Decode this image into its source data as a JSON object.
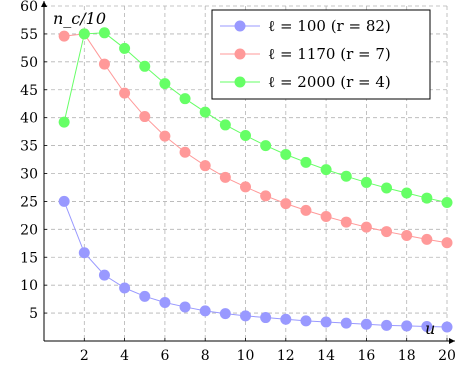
{
  "chart_data": {
    "type": "line",
    "title": "",
    "xlabel": "u",
    "ylabel": "n_c/10",
    "xlim": [
      0,
      20
    ],
    "ylim": [
      0,
      60
    ],
    "grid": true,
    "legend_position": "top-right",
    "x_ticks": [
      2,
      4,
      6,
      8,
      10,
      12,
      14,
      16,
      18,
      20
    ],
    "y_ticks": [
      5,
      10,
      15,
      20,
      25,
      30,
      35,
      40,
      45,
      50,
      55,
      60
    ],
    "x": [
      1,
      2,
      3,
      4,
      5,
      6,
      7,
      8,
      9,
      10,
      11,
      12,
      13,
      14,
      15,
      16,
      17,
      18,
      19,
      20
    ],
    "series": [
      {
        "name": "ℓ = 100 (r = 82)",
        "color": "#9999ff",
        "values": [
          25.0,
          15.8,
          11.8,
          9.5,
          8.0,
          6.9,
          6.1,
          5.4,
          4.9,
          4.5,
          4.2,
          3.9,
          3.6,
          3.4,
          3.2,
          3.0,
          2.8,
          2.7,
          2.6,
          2.5
        ]
      },
      {
        "name": "ℓ = 1170 (r = 7)",
        "color": "#ff9999",
        "values": [
          54.6,
          55.0,
          49.6,
          44.4,
          40.2,
          36.7,
          33.8,
          31.4,
          29.3,
          27.6,
          26.0,
          24.6,
          23.4,
          22.3,
          21.3,
          20.4,
          19.6,
          18.9,
          18.2,
          17.6
        ]
      },
      {
        "name": "ℓ = 2000 (r = 4)",
        "color": "#66ff66",
        "values": [
          39.2,
          55.0,
          55.2,
          52.4,
          49.2,
          46.1,
          43.4,
          41.0,
          38.7,
          36.8,
          35.0,
          33.4,
          32.0,
          30.7,
          29.5,
          28.4,
          27.4,
          26.5,
          25.6,
          24.8
        ]
      }
    ]
  }
}
